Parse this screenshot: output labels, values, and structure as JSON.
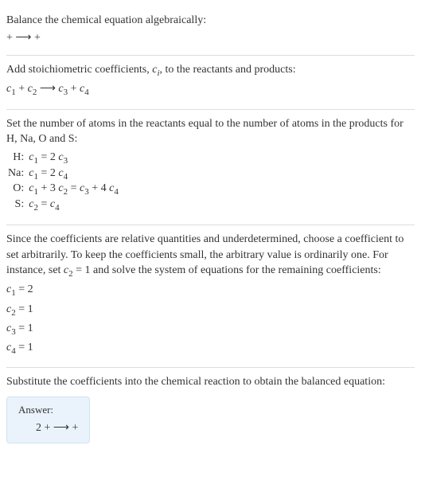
{
  "text_color": "#333333",
  "rule_color": "#dddddd",
  "answer_bg": "#eaf3fb",
  "answer_border": "#cfe3f2",
  "body_fontsize": 14,
  "sub_fontsize": 11,
  "section1": {
    "title": "Balance the chemical equation algebraically:",
    "eq_parts": {
      "plus": " + ",
      "arrow": " ⟶ ",
      "plus2": " + "
    }
  },
  "section2": {
    "line1_a": "Add stoichiometric coefficients, ",
    "line1_ci": "c",
    "line1_ci_sub": "i",
    "line1_b": ", to the reactants and products:",
    "eq": {
      "c1": "c",
      "s1": "1",
      "plus1": " + ",
      "c2": "c",
      "s2": "2",
      "arrow": " ⟶ ",
      "c3": "c",
      "s3": "3",
      "plus2": " + ",
      "c4": "c",
      "s4": "4"
    }
  },
  "section3": {
    "intro": "Set the number of atoms in the reactants equal to the number of atoms in the products for H, Na, O and S:",
    "rows": [
      {
        "el": "H:",
        "lhs_c": "c",
        "lhs_s": "1",
        "eq": " = 2 ",
        "rhs_c": "c",
        "rhs_s": "3",
        "tail": ""
      },
      {
        "el": "Na:",
        "lhs_c": "c",
        "lhs_s": "1",
        "eq": " = 2 ",
        "rhs_c": "c",
        "rhs_s": "4",
        "tail": ""
      },
      {
        "el": "O:",
        "lhs_c": "c",
        "lhs_s": "1",
        "eq": " + 3 ",
        "mid_c": "c",
        "mid_s": "2",
        "eq2": " = ",
        "rhs_c": "c",
        "rhs_s": "3",
        "tail": " + 4 ",
        "rhs2_c": "c",
        "rhs2_s": "4"
      },
      {
        "el": "S:",
        "lhs_c": "c",
        "lhs_s": "2",
        "eq": " = ",
        "rhs_c": "c",
        "rhs_s": "4",
        "tail": ""
      }
    ]
  },
  "section4": {
    "intro_a": "Since the coefficients are relative quantities and underdetermined, choose a coefficient to set arbitrarily. To keep the coefficients small, the arbitrary value is ordinarily one. For instance, set ",
    "c": "c",
    "s": "2",
    "intro_b": " = 1 and solve the system of equations for the remaining coefficients:",
    "sol": [
      {
        "c": "c",
        "s": "1",
        "v": " = 2"
      },
      {
        "c": "c",
        "s": "2",
        "v": " = 1"
      },
      {
        "c": "c",
        "s": "3",
        "v": " = 1"
      },
      {
        "c": "c",
        "s": "4",
        "v": " = 1"
      }
    ]
  },
  "section5": {
    "intro": "Substitute the coefficients into the chemical reaction to obtain the balanced equation:",
    "answer_label": "Answer:",
    "answer_eq": {
      "two": "2 ",
      "plus": " + ",
      "arrow": " ⟶ ",
      "plus2": " + "
    }
  }
}
